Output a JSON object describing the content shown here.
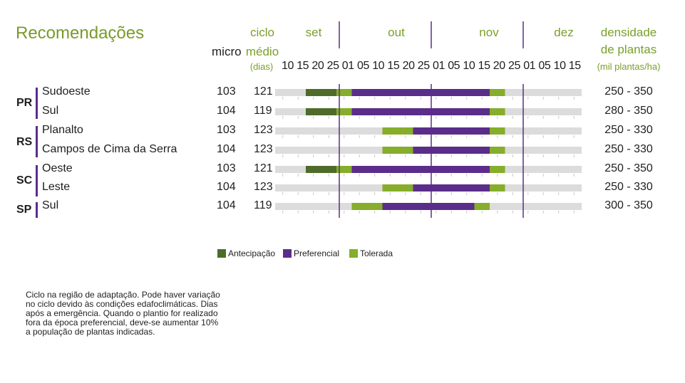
{
  "title": "Recomendações",
  "headers": {
    "micro": "micro",
    "ciclo": [
      "ciclo",
      "médio",
      "(dias)"
    ],
    "densidade": [
      "densidade",
      "de plantas",
      "(mil plantas/ha)"
    ]
  },
  "months": [
    "set",
    "out",
    "nov",
    "dez"
  ],
  "days": [
    "10",
    "15",
    "20",
    "25",
    "01",
    "05",
    "10",
    "15",
    "20",
    "25",
    "01",
    "05",
    "10",
    "15",
    "20",
    "25",
    "01",
    "05",
    "10",
    "15"
  ],
  "legend": [
    {
      "label": "Antecipação",
      "color": "#4e6b2a"
    },
    {
      "label": "Preferencial",
      "color": "#5b2d8a"
    },
    {
      "label": "Tolerada",
      "color": "#86ad2b"
    }
  ],
  "note": "Ciclo na região de adaptação. Pode haver variação no ciclo devido às condições edafoclimáticas. Dias após a emergência. Quando o plantio for realizado fora da época preferencial, deve-se aumentar 10% a população de plantas indicadas.",
  "states": [
    "PR",
    "RS",
    "SC",
    "SP"
  ],
  "chart_data": {
    "type": "bar",
    "title": "Recomendações",
    "x_axis": [
      "10 set",
      "15 set",
      "20 set",
      "25 set",
      "01 out",
      "05 out",
      "10 out",
      "15 out",
      "20 out",
      "25 out",
      "01 nov",
      "05 nov",
      "10 nov",
      "15 nov",
      "20 nov",
      "25 nov",
      "01 dez",
      "05 dez",
      "10 dez",
      "15 dez"
    ],
    "rows": [
      {
        "state": "PR",
        "region": "Sudoeste",
        "micro": "103",
        "ciclo": "121",
        "densidade": "250 - 350",
        "antecipacao": [
          "20 set",
          "01 out"
        ],
        "tolerada_inicio": [
          "01 out",
          "05 out"
        ],
        "preferencial": [
          "05 out",
          "20 nov"
        ],
        "tolerada_fim": [
          "20 nov",
          "25 nov"
        ]
      },
      {
        "state": "PR",
        "region": "Sul",
        "micro": "104",
        "ciclo": "119",
        "densidade": "280 - 350",
        "antecipacao": [
          "20 set",
          "01 out"
        ],
        "tolerada_inicio": [
          "01 out",
          "05 out"
        ],
        "preferencial": [
          "05 out",
          "20 nov"
        ],
        "tolerada_fim": [
          "20 nov",
          "25 nov"
        ]
      },
      {
        "state": "RS",
        "region": "Planalto",
        "micro": "103",
        "ciclo": "123",
        "densidade": "250 - 330",
        "antecipacao": null,
        "tolerada_inicio": [
          "15 out",
          "25 out"
        ],
        "preferencial": [
          "25 out",
          "20 nov"
        ],
        "tolerada_fim": [
          "20 nov",
          "25 nov"
        ]
      },
      {
        "state": "RS",
        "region": "Campos de Cima da Serra",
        "micro": "104",
        "ciclo": "123",
        "densidade": "250 - 330",
        "antecipacao": null,
        "tolerada_inicio": [
          "15 out",
          "25 out"
        ],
        "preferencial": [
          "25 out",
          "20 nov"
        ],
        "tolerada_fim": [
          "20 nov",
          "25 nov"
        ]
      },
      {
        "state": "SC",
        "region": "Oeste",
        "micro": "103",
        "ciclo": "121",
        "densidade": "250 - 350",
        "antecipacao": [
          "20 set",
          "01 out"
        ],
        "tolerada_inicio": [
          "01 out",
          "05 out"
        ],
        "preferencial": [
          "05 out",
          "20 nov"
        ],
        "tolerada_fim": [
          "20 nov",
          "25 nov"
        ]
      },
      {
        "state": "SC",
        "region": "Leste",
        "micro": "104",
        "ciclo": "123",
        "densidade": "250 - 330",
        "antecipacao": null,
        "tolerada_inicio": [
          "15 out",
          "25 out"
        ],
        "preferencial": [
          "25 out",
          "20 nov"
        ],
        "tolerada_fim": [
          "20 nov",
          "25 nov"
        ]
      },
      {
        "state": "SP",
        "region": "Sul",
        "micro": "104",
        "ciclo": "119",
        "densidade": "300 - 350",
        "antecipacao": null,
        "tolerada_inicio": [
          "05 out",
          "15 out"
        ],
        "preferencial": [
          "15 out",
          "15 nov"
        ],
        "tolerada_fim": [
          "15 nov",
          "20 nov"
        ]
      }
    ]
  }
}
